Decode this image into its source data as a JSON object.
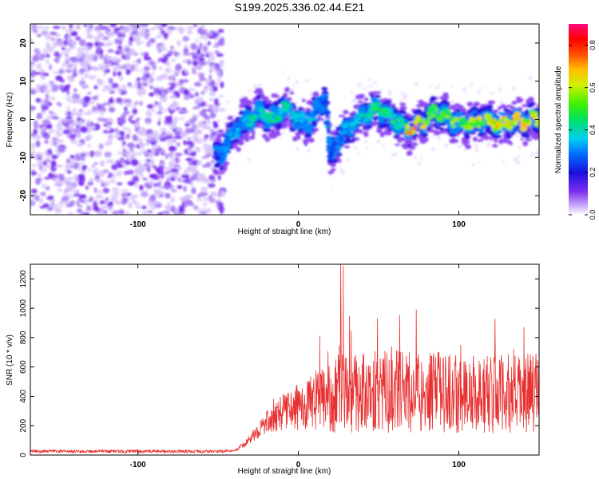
{
  "title": "S199.2025.336.02.44.E21",
  "chart_data": [
    {
      "type": "heatmap",
      "title": "",
      "xlabel": "Height of straight line (km)",
      "ylabel": "Frequency (Hz)",
      "xlim": [
        -167,
        150
      ],
      "ylim": [
        -25,
        25
      ],
      "xticks": [
        -100,
        0,
        100
      ],
      "yticks": [
        -20,
        -10,
        0,
        10,
        20
      ],
      "colorbar": {
        "label": "Normalized spectral amplitude",
        "range": [
          0,
          0.9
        ],
        "ticks": [
          0.0,
          0.2,
          0.4,
          0.6,
          0.8
        ]
      },
      "ridge": {
        "description_points_x": [
          -50,
          -45,
          -40,
          -35,
          -30,
          -25,
          -20,
          -15,
          -10,
          -5,
          0,
          5,
          10,
          15,
          17,
          20,
          25,
          30,
          35,
          40,
          45,
          50,
          55,
          60,
          65,
          70,
          75,
          80,
          85,
          90,
          95,
          100,
          105,
          110,
          115,
          120,
          125,
          130,
          135,
          140,
          145,
          150
        ],
        "y": [
          -10,
          -7,
          -3,
          -1,
          0,
          2,
          1,
          0,
          3,
          2,
          0,
          -1,
          1,
          5,
          6,
          -10,
          -5,
          -3,
          -1,
          1,
          2,
          3,
          1,
          0,
          -2,
          -3,
          -1,
          0,
          2,
          1,
          0,
          -1,
          -1,
          -1,
          0,
          -1,
          -1,
          -1,
          0,
          -1,
          0,
          0
        ],
        "amplitude": [
          0.3,
          0.35,
          0.4,
          0.4,
          0.45,
          0.45,
          0.5,
          0.45,
          0.45,
          0.45,
          0.4,
          0.4,
          0.4,
          0.3,
          0.3,
          0.3,
          0.35,
          0.4,
          0.4,
          0.45,
          0.5,
          0.55,
          0.5,
          0.5,
          0.55,
          0.8,
          0.85,
          0.6,
          0.55,
          0.6,
          0.6,
          0.6,
          0.65,
          0.65,
          0.7,
          0.7,
          0.8,
          0.7,
          0.7,
          0.75,
          0.7,
          0.7
        ]
      }
    },
    {
      "type": "line",
      "title": "",
      "xlabel": "Height of straight line (km)",
      "ylabel": "SNR (10 * v/v)",
      "xlim": [
        -167,
        150
      ],
      "ylim": [
        0,
        1300
      ],
      "xticks": [
        -100,
        0,
        100
      ],
      "yticks": [
        0,
        200,
        400,
        600,
        800,
        1000,
        1200
      ],
      "series": [
        {
          "color": "#e83030",
          "x": [
            -167,
            -150,
            -130,
            -110,
            -90,
            -70,
            -50,
            -40,
            -35,
            -30,
            -25,
            -20,
            -15,
            -10,
            -5,
            0,
            5,
            10,
            15,
            20,
            25,
            28,
            30,
            35,
            40,
            45,
            50,
            55,
            60,
            65,
            70,
            75,
            80,
            85,
            90,
            95,
            100,
            105,
            110,
            115,
            120,
            125,
            130,
            135,
            140,
            145,
            150
          ],
          "values": [
            25,
            25,
            25,
            25,
            25,
            25,
            25,
            30,
            60,
            110,
            170,
            220,
            260,
            290,
            310,
            330,
            340,
            360,
            380,
            400,
            420,
            1290,
            420,
            430,
            430,
            440,
            440,
            430,
            440,
            430,
            430,
            430,
            420,
            430,
            430,
            420,
            420,
            420,
            420,
            410,
            420,
            410,
            420,
            410,
            420,
            420,
            420
          ]
        }
      ]
    }
  ]
}
